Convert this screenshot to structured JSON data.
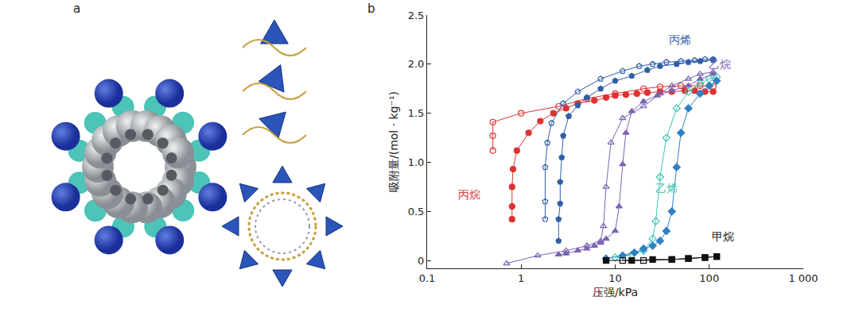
{
  "panel_labels": [
    "a",
    "b"
  ],
  "chart_data": {
    "type": "scatter",
    "log": "x",
    "grid": false,
    "x_label": "压强/kPa",
    "y_label": "吸附量/(mol · kg⁻¹)",
    "xlim": [
      0.1,
      1000
    ],
    "xticks": [
      0.1,
      1,
      10,
      100,
      {
        "value": 1000,
        "label": "1 000"
      }
    ],
    "ylim": [
      -0.08,
      2.5
    ],
    "yticks": [
      0,
      0.5,
      {
        "value": 1,
        "label": "1.0"
      },
      1.5,
      {
        "value": 2,
        "label": "2.0"
      },
      2.5
    ],
    "annotations": [
      {
        "text": "丙烯",
        "x": 49,
        "y": 2.25,
        "color": "#2f5fa7"
      },
      {
        "text": "乙烷",
        "x": 130,
        "y": 2.0,
        "color": "#7b62b3"
      },
      {
        "text": "丙烷",
        "x": 0.28,
        "y": 0.67,
        "color": "#e03232"
      },
      {
        "text": "乙烯",
        "x": 35,
        "y": 0.74,
        "color": "#3cc4b4"
      },
      {
        "text": "甲烷",
        "x": 140,
        "y": 0.24,
        "color": "#111111"
      }
    ],
    "series": [
      {
        "name": "丙烷",
        "color": "#e03232",
        "marker": "circle-open",
        "x": [
          110,
          80,
          50,
          30,
          20,
          10,
          5,
          2.5,
          1,
          0.5,
          0.5,
          0.5
        ],
        "values": [
          1.77,
          1.78,
          1.78,
          1.77,
          1.75,
          1.7,
          1.65,
          1.57,
          1.5,
          1.41,
          1.27,
          1.12
        ]
      },
      {
        "name": "丙烷",
        "color": "#e03232",
        "marker": "circle",
        "x": [
          0.8,
          0.8,
          0.8,
          0.82,
          0.9,
          1.2,
          1.6,
          2.2,
          3,
          4,
          6,
          8,
          10,
          13,
          17,
          22,
          30,
          40,
          55,
          70,
          90,
          110
        ],
        "values": [
          0.42,
          0.55,
          0.75,
          0.93,
          1.12,
          1.3,
          1.42,
          1.5,
          1.55,
          1.6,
          1.63,
          1.66,
          1.68,
          1.69,
          1.7,
          1.71,
          1.72,
          1.72,
          1.73,
          1.73,
          1.72,
          1.72
        ]
      },
      {
        "name": "丙烯",
        "color": "#2f5fa7",
        "marker": "pentagon-open",
        "x": [
          110,
          90,
          70,
          50,
          35,
          25,
          18,
          12,
          7,
          4,
          2.8,
          2.1,
          1.9,
          1.8,
          1.8,
          1.8
        ],
        "values": [
          2.05,
          2.05,
          2.04,
          2.03,
          2.02,
          2.0,
          1.98,
          1.93,
          1.85,
          1.72,
          1.6,
          1.4,
          1.2,
          0.95,
          0.6,
          0.42
        ]
      },
      {
        "name": "丙烯",
        "color": "#2f5fa7",
        "marker": "pentagon",
        "x": [
          2.5,
          2.5,
          2.6,
          2.6,
          2.7,
          2.8,
          3.2,
          4,
          5,
          7,
          10,
          15,
          22,
          30,
          45,
          60,
          80,
          110
        ],
        "values": [
          0.2,
          0.42,
          0.58,
          0.8,
          1.05,
          1.27,
          1.47,
          1.58,
          1.66,
          1.75,
          1.83,
          1.88,
          1.94,
          1.98,
          2.0,
          2.02,
          2.03,
          2.04
        ]
      },
      {
        "name": "乙烷",
        "color": "#7b62b3",
        "marker": "triangle-up-open",
        "x": [
          110,
          80,
          60,
          40,
          30,
          20,
          12,
          9,
          8,
          7.5,
          7,
          5,
          3,
          1.5,
          0.7
        ],
        "values": [
          1.92,
          1.9,
          1.85,
          1.78,
          1.7,
          1.57,
          1.45,
          1.2,
          0.75,
          0.35,
          0.2,
          0.15,
          0.1,
          0.05,
          -0.03
        ]
      },
      {
        "name": "乙烷",
        "color": "#7b62b3",
        "marker": "triangle-up",
        "x": [
          2.5,
          3,
          4,
          5,
          6,
          7,
          8,
          10,
          11,
          12,
          13,
          15,
          20,
          28,
          40,
          60,
          80,
          110
        ],
        "values": [
          0.06,
          0.07,
          0.1,
          0.12,
          0.15,
          0.18,
          0.22,
          0.3,
          0.55,
          0.98,
          1.3,
          1.52,
          1.62,
          1.68,
          1.73,
          1.78,
          1.85,
          1.9
        ]
      },
      {
        "name": "乙烯",
        "color": "#3cc4b4",
        "marker": "diamond-open",
        "x": [
          120,
          100,
          80,
          60,
          45,
          35,
          30,
          27,
          25,
          20,
          15,
          10
        ],
        "values": [
          1.87,
          1.85,
          1.8,
          1.72,
          1.55,
          1.25,
          0.85,
          0.4,
          0.22,
          0.1,
          0.06,
          0.03
        ]
      },
      {
        "name": "乙烯",
        "color": "#2f7fc4",
        "marker": "diamond",
        "x": [
          8,
          12,
          16,
          20,
          25,
          30,
          35,
          40,
          45,
          50,
          60,
          80,
          100,
          120
        ],
        "values": [
          0.02,
          0.05,
          0.08,
          0.12,
          0.15,
          0.2,
          0.3,
          0.5,
          0.95,
          1.3,
          1.55,
          1.7,
          1.78,
          1.83
        ]
      },
      {
        "name": "甲烷",
        "color": "#111111",
        "marker": "square-open",
        "x": [
          120,
          90,
          60,
          40,
          20,
          12
        ],
        "values": [
          0.04,
          0.03,
          0.02,
          0.01,
          0,
          0
        ]
      },
      {
        "name": "甲烷",
        "color": "#111111",
        "marker": "square",
        "x": [
          8,
          15,
          25,
          40,
          60,
          90,
          120
        ],
        "values": [
          0,
          0,
          0.01,
          0.01,
          0.02,
          0.03,
          0.04
        ]
      }
    ]
  }
}
